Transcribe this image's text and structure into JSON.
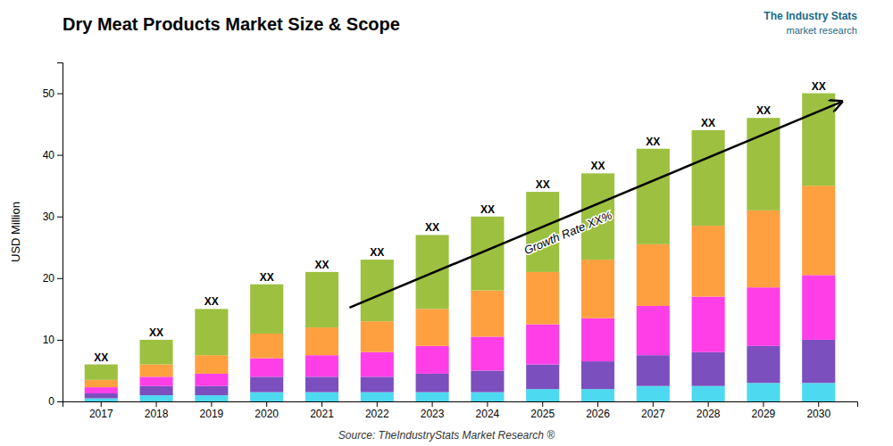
{
  "chart_data": {
    "type": "bar",
    "title": "Dry Meat Products Market Size & Scope",
    "ylabel": "USD Million",
    "source": "Source: TheIndustryStats Market Research ®",
    "logo": [
      "The Industry Stats",
      "market research"
    ],
    "bar_label": "XX",
    "annotations": [
      "Growth Rate XX%"
    ],
    "categories": [
      "2017",
      "2018",
      "2019",
      "2020",
      "2021",
      "2022",
      "2023",
      "2024",
      "2025",
      "2026",
      "2027",
      "2028",
      "2029",
      "2030"
    ],
    "series": [
      {
        "color": "#4dd9f0",
        "values": [
          0.5,
          1.0,
          1.0,
          1.5,
          1.5,
          1.5,
          1.5,
          1.5,
          2.0,
          2.0,
          2.5,
          2.5,
          3.0,
          3.0
        ]
      },
      {
        "color": "#7B4FBE",
        "values": [
          0.8,
          1.5,
          1.5,
          2.5,
          2.5,
          2.5,
          3.0,
          3.5,
          4.0,
          4.5,
          5.0,
          5.5,
          6.0,
          7.0
        ]
      },
      {
        "color": "#FF3EE8",
        "values": [
          1.0,
          1.5,
          2.0,
          3.0,
          3.5,
          4.0,
          4.5,
          5.5,
          6.5,
          7.0,
          8.0,
          9.0,
          9.5,
          10.5
        ]
      },
      {
        "color": "#FFA040",
        "values": [
          1.2,
          2.0,
          3.0,
          4.0,
          4.5,
          5.0,
          6.0,
          7.5,
          8.5,
          9.5,
          10.0,
          11.5,
          12.5,
          14.5
        ]
      },
      {
        "color": "#9DC040",
        "values": [
          2.5,
          4.0,
          7.5,
          8.0,
          9.0,
          10.0,
          12.0,
          12.0,
          13.0,
          14.0,
          15.5,
          15.5,
          15.0,
          15.0
        ]
      }
    ],
    "stacked": true,
    "ylim": [
      0,
      55
    ],
    "yticks": [
      0,
      10,
      20,
      30,
      40,
      50
    ],
    "grid": false
  }
}
